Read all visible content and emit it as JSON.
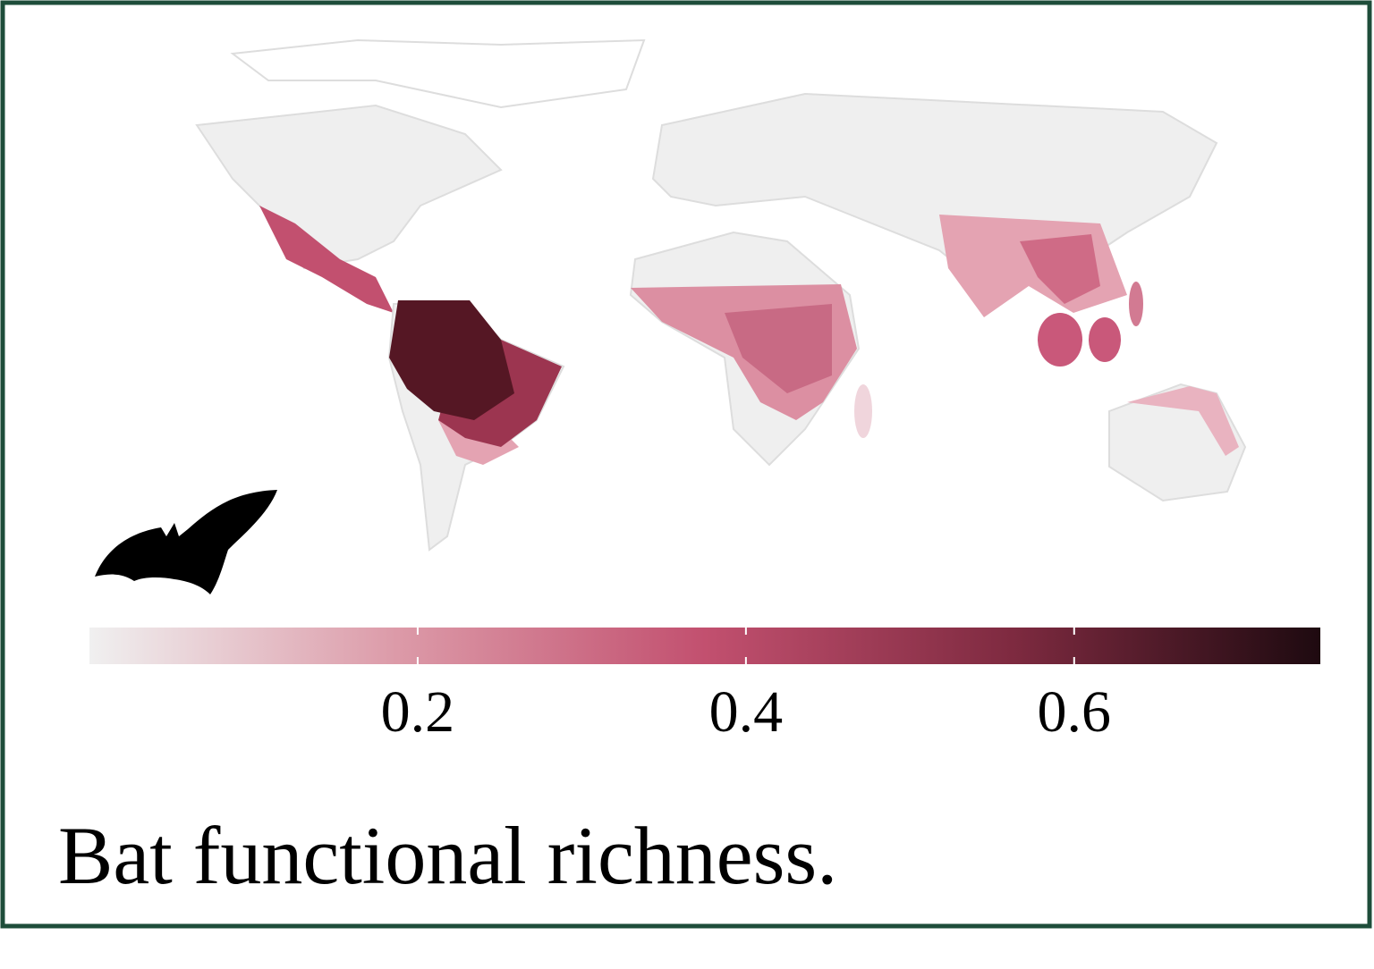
{
  "colorbar": {
    "lim": [
      0,
      0.75
    ],
    "ticks": [
      0.2,
      0.4,
      0.6
    ],
    "colors": [
      "#f0f0f0",
      "#dc9aa8",
      "#c2506f",
      "#7e2a40",
      "#1e0a10"
    ]
  },
  "caption": "Bat functional richness."
}
